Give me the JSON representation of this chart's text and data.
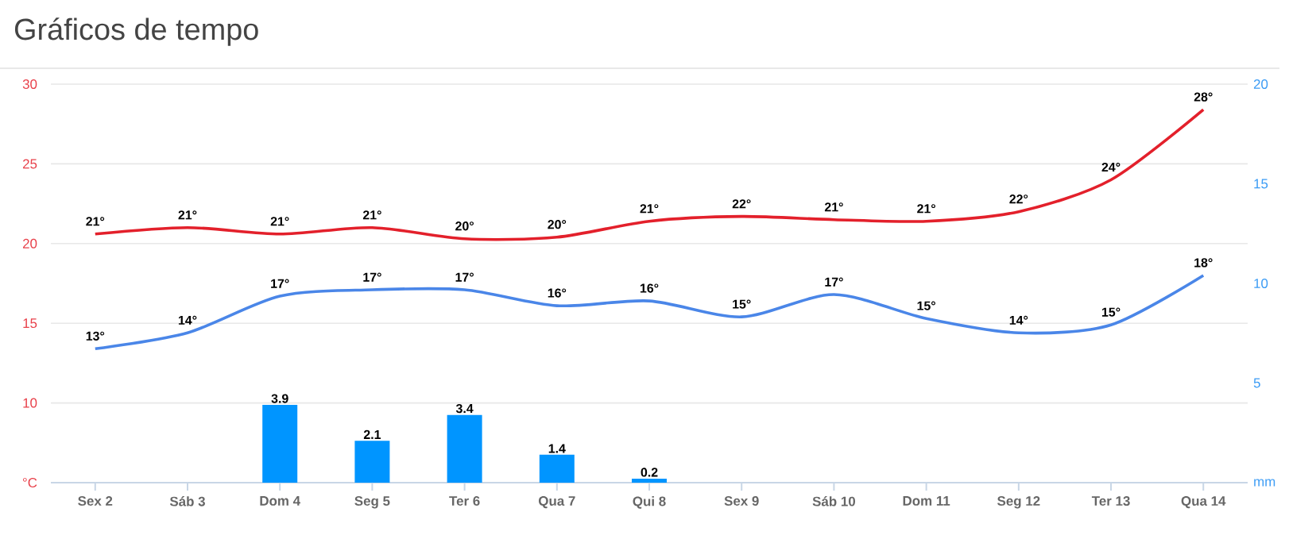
{
  "chart_data": {
    "type": "line",
    "title": "Gráficos de tempo",
    "categories": [
      "Sex 2",
      "Sáb 3",
      "Dom 4",
      "Seg 5",
      "Ter 6",
      "Qua 7",
      "Qui 8",
      "Sex 9",
      "Sáb 10",
      "Dom 11",
      "Seg 12",
      "Ter 13",
      "Qua 14"
    ],
    "series": [
      {
        "color": "#e3202b",
        "values": [
          20.6,
          21.0,
          20.6,
          21.0,
          20.3,
          20.4,
          21.4,
          21.7,
          21.5,
          21.4,
          22.0,
          24.0,
          28.4
        ],
        "value_labels": [
          "21°",
          "21°",
          "21°",
          "21°",
          "20°",
          "20°",
          "21°",
          "22°",
          "21°",
          "21°",
          "22°",
          "24°",
          "28°"
        ]
      },
      {
        "color": "#4a86e8",
        "values": [
          13.4,
          14.4,
          16.7,
          17.1,
          17.1,
          16.1,
          16.4,
          15.4,
          16.8,
          15.3,
          14.4,
          14.9,
          18.0
        ],
        "value_labels": [
          "13°",
          "14°",
          "17°",
          "17°",
          "17°",
          "16°",
          "16°",
          "15°",
          "17°",
          "15°",
          "14°",
          "15°",
          "18°"
        ]
      },
      {
        "type": "bar",
        "axis": "y2",
        "color": "#0095ff",
        "values": [
          null,
          null,
          3.9,
          2.1,
          3.4,
          1.4,
          0.2,
          null,
          null,
          null,
          null,
          null,
          null
        ],
        "data_labels": true
      }
    ],
    "ylim": [
      5,
      30
    ],
    "yticks": [
      {
        "value": 5,
        "label": "°C"
      },
      10,
      15,
      20,
      25,
      30
    ],
    "y2lim": [
      0,
      20
    ],
    "y2ticks": [
      {
        "value": 0,
        "label": "mm"
      },
      5,
      10,
      15,
      20
    ],
    "grid": "y",
    "marker": "none",
    "line_style": "solid"
  }
}
